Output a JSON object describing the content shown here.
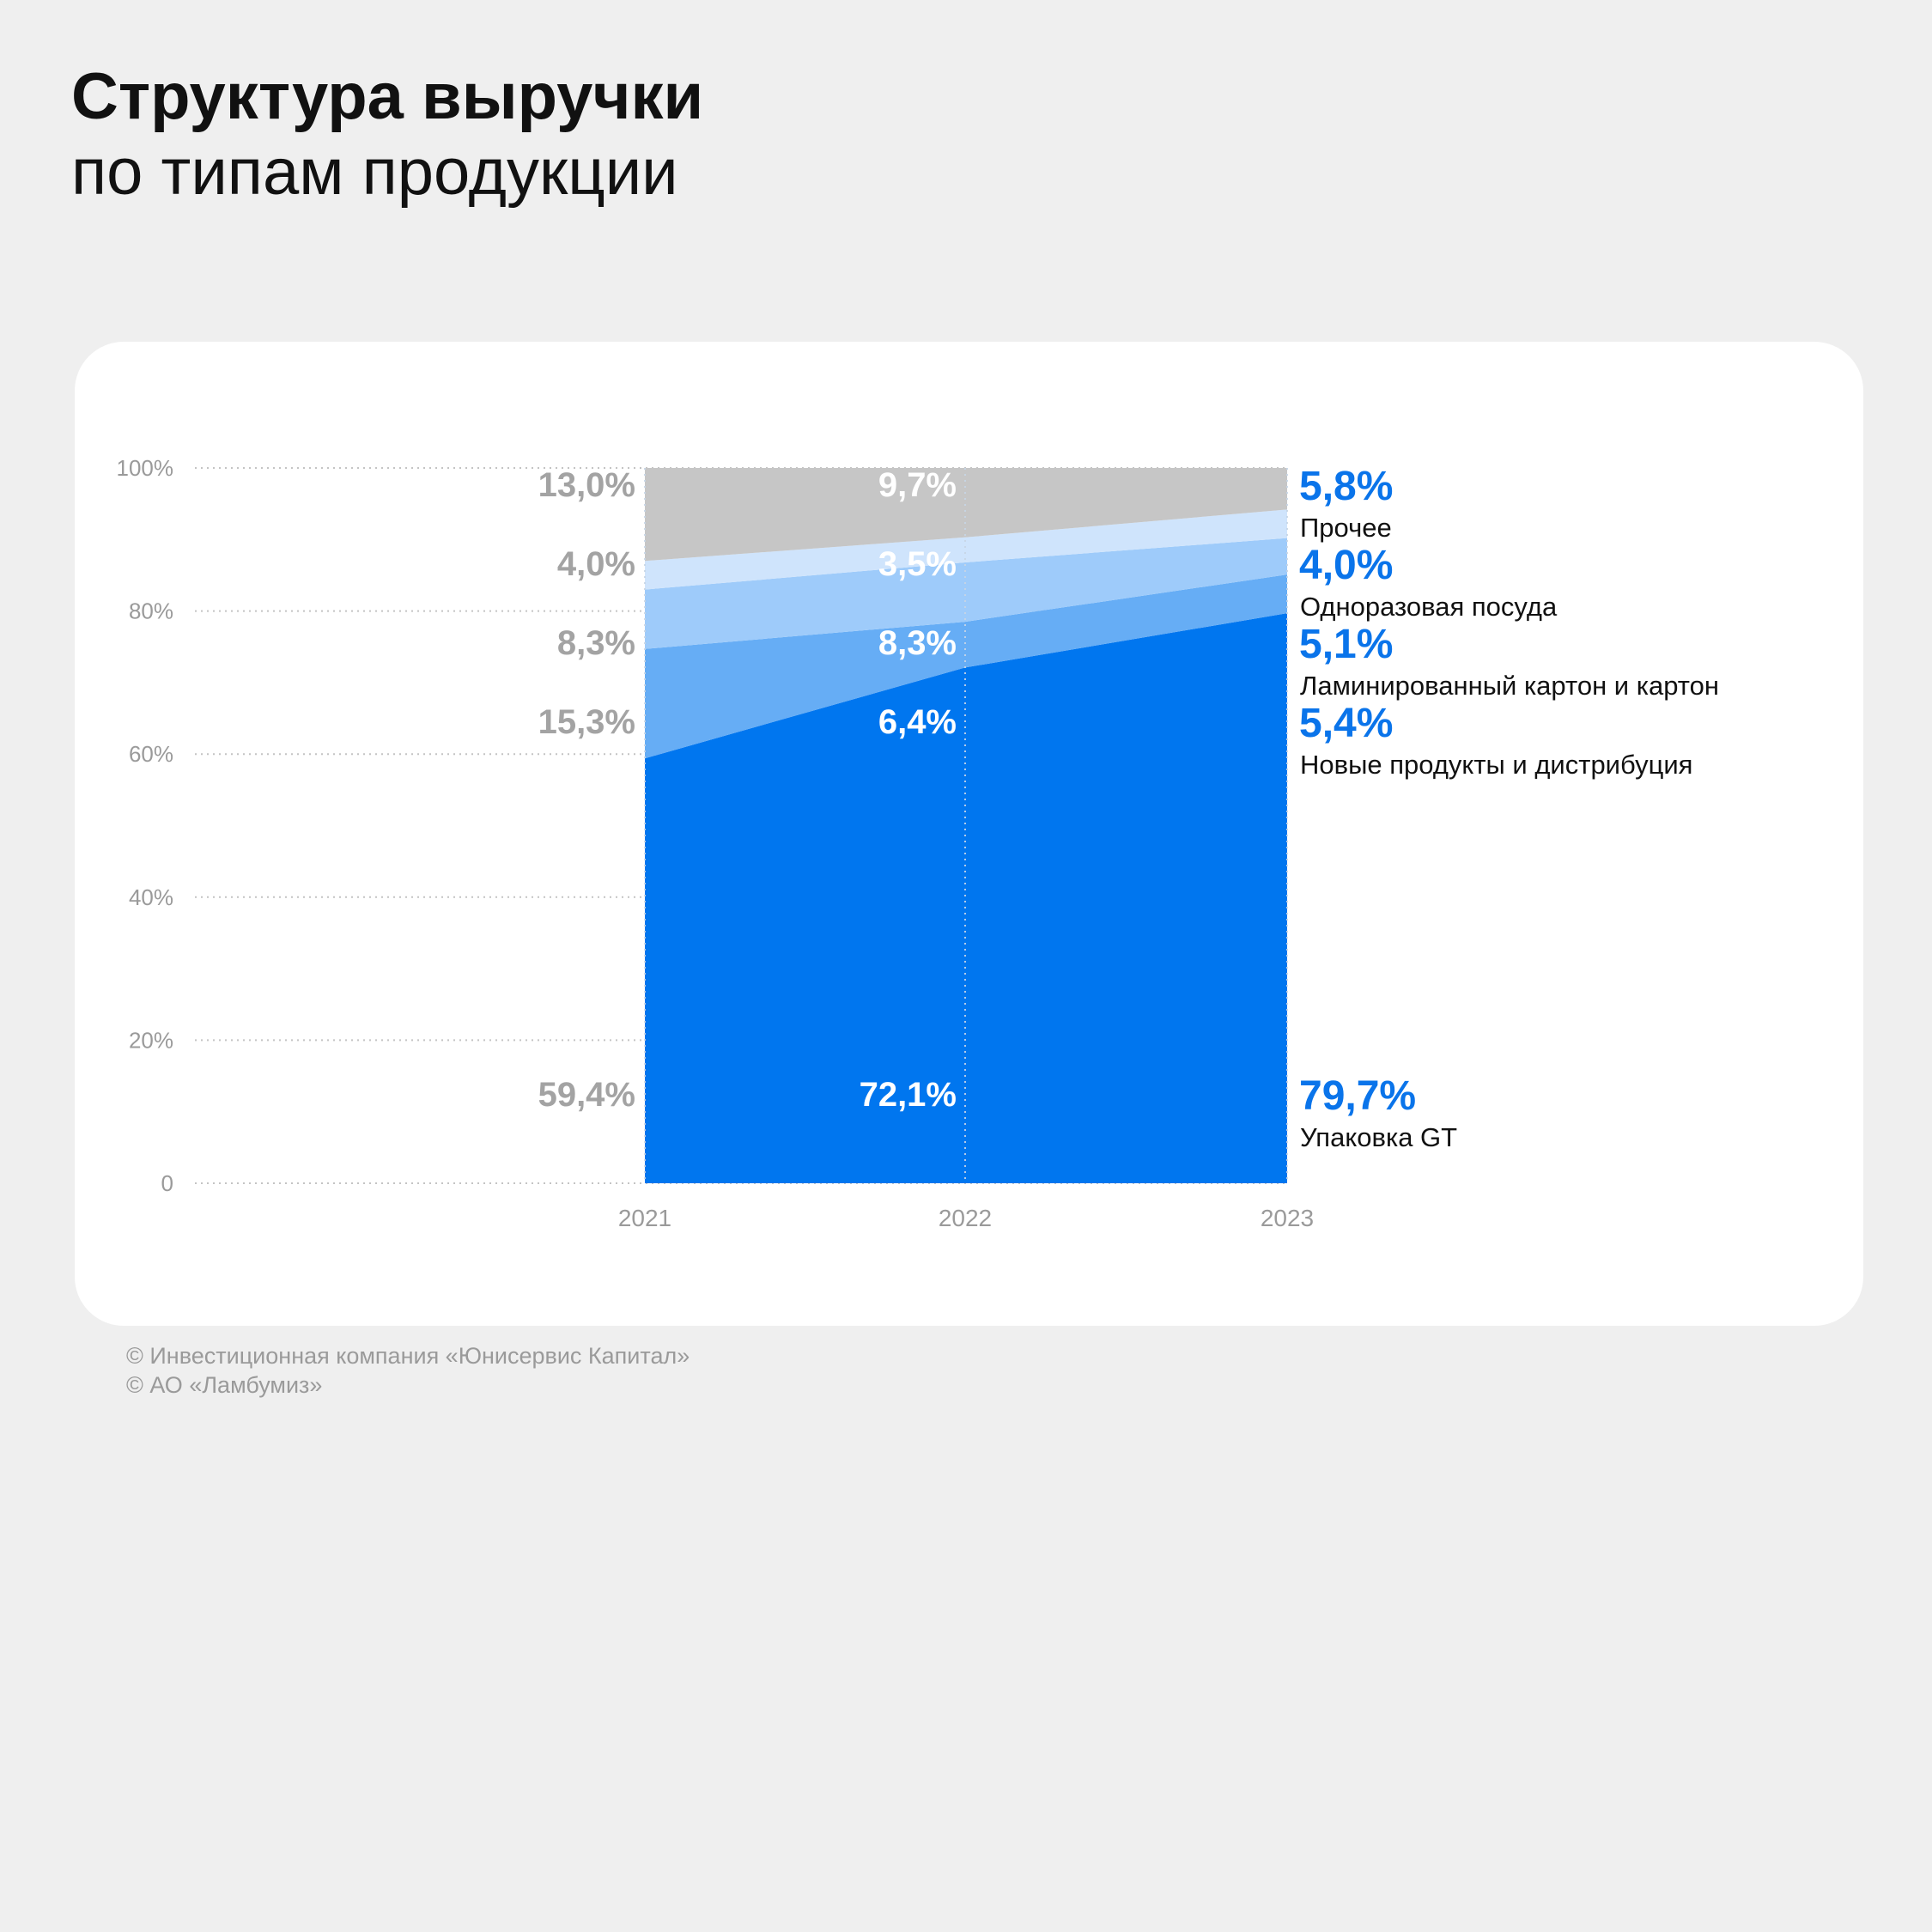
{
  "header": {
    "title": "Структура выручки",
    "subtitle": "по типам продукции"
  },
  "footer": {
    "lines": [
      "© Инвестиционная компания «Юнисервис Капитал»",
      "© АО «Ламбумиз»"
    ]
  },
  "colors": {
    "background": "#efefef",
    "card": "#ffffff",
    "label_2021": "#a3a3a3",
    "label_2022": "#ffffff",
    "label_2023": "#0a74ea",
    "axis_text": "#9a9a9a"
  },
  "chart_data": {
    "type": "area",
    "stacked": true,
    "title": "Структура выручки",
    "subtitle": "по типам продукции",
    "x": [
      "2021",
      "2022",
      "2023"
    ],
    "y_ticks": [
      "0",
      "20%",
      "40%",
      "60%",
      "80%",
      "100%"
    ],
    "ylim": [
      0,
      100
    ],
    "grid": true,
    "legend": "right",
    "series": [
      {
        "name": "Упаковка GT",
        "color": "#0076ef",
        "values": [
          59.4,
          72.1,
          79.7
        ],
        "labels": [
          "59,4%",
          "72,1%",
          "79,7%"
        ]
      },
      {
        "name": "Новые продукты и дистрибуция",
        "color": "#66adf5",
        "values": [
          15.3,
          6.4,
          5.4
        ],
        "labels": [
          "15,3%",
          "6,4%",
          "5,4%"
        ]
      },
      {
        "name": "Ламинированный картон и картон",
        "color": "#9ecbfa",
        "values": [
          8.3,
          8.3,
          5.1
        ],
        "labels": [
          "8,3%",
          "8,3%",
          "5,1%"
        ]
      },
      {
        "name": "Одноразовая посуда",
        "color": "#cfe4fc",
        "values": [
          4.0,
          3.5,
          4.0
        ],
        "labels": [
          "4,0%",
          "3,5%",
          "4,0%"
        ]
      },
      {
        "name": "Прочее",
        "color": "#c6c6c6",
        "values": [
          13.0,
          9.7,
          5.8
        ],
        "labels": [
          "13,0%",
          "9,7%",
          "5,8%"
        ]
      }
    ]
  }
}
